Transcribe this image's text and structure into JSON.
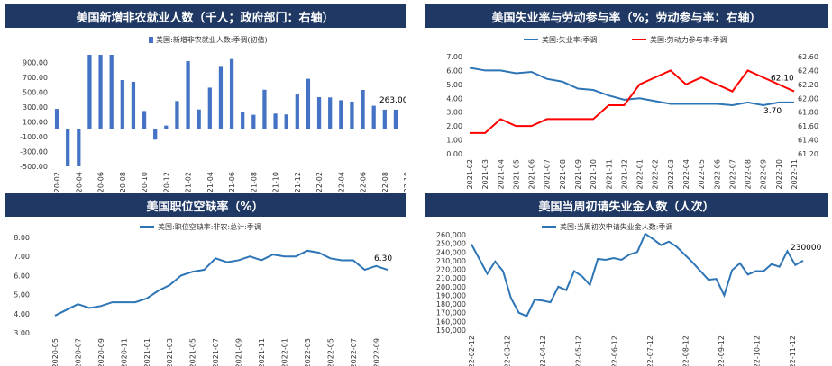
{
  "chart_data": [
    {
      "type": "bar",
      "title": "美国新增非农就业人数（千人；政府部门：右轴）",
      "legend": "美国:新增非农就业人数:季调(初值)",
      "legend_position": "top-center",
      "color": "#4472c4",
      "ylim": [
        -500,
        1000
      ],
      "yticks": [
        "900.00",
        "700.00",
        "500.00",
        "300.00",
        "100.00",
        "-100.00",
        "-300.00",
        "-500.00"
      ],
      "ytick_values": [
        900,
        700,
        500,
        300,
        100,
        -100,
        -300,
        -500
      ],
      "xtick_labels": [
        "2020-02",
        "2020-04",
        "2020-06",
        "2020-08",
        "2020-10",
        "2020-12",
        "2021-02",
        "2021-04",
        "2021-06",
        "2021-08",
        "2021-10",
        "2021-12",
        "2022-02",
        "2022-04",
        "2022-06",
        "2022-08",
        "2022-10"
      ],
      "values": [
        273,
        -500,
        -500,
        1000,
        1000,
        1000,
        661,
        638,
        245,
        -140,
        49,
        379,
        916,
        266,
        559,
        850,
        943,
        235,
        194,
        531,
        210,
        199,
        467,
        678,
        431,
        428,
        390,
        372,
        528,
        315,
        263,
        263
      ],
      "last_label": "263.00"
    },
    {
      "type": "line",
      "title": "美国失业率与劳动参与率（%；劳动参与率：右轴）",
      "series": [
        {
          "name": "美国:失业率:季调",
          "color": "#2e75b6",
          "axis": "left",
          "values": [
            6.2,
            6.0,
            6.0,
            5.8,
            5.9,
            5.4,
            5.2,
            4.7,
            4.6,
            4.2,
            3.9,
            4.0,
            3.8,
            3.6,
            3.6,
            3.6,
            3.6,
            3.5,
            3.7,
            3.5,
            3.7,
            3.7
          ]
        },
        {
          "name": "美国:劳动力参与率:季调",
          "color": "#ff0000",
          "axis": "right",
          "values": [
            61.5,
            61.5,
            61.7,
            61.6,
            61.6,
            61.7,
            61.7,
            61.7,
            61.7,
            61.9,
            61.9,
            62.2,
            62.3,
            62.4,
            62.2,
            62.3,
            62.2,
            62.1,
            62.4,
            62.3,
            62.2,
            62.1
          ]
        }
      ],
      "categories": [
        "2021-02",
        "2021-03",
        "2021-04",
        "2021-05",
        "2021-06",
        "2021-07",
        "2021-08",
        "2021-09",
        "2021-10",
        "2021-11",
        "2021-12",
        "2022-01",
        "2022-02",
        "2022-03",
        "2022-04",
        "2022-05",
        "2022-06",
        "2022-07",
        "2022-08",
        "2022-09",
        "2022-10",
        "2022-11"
      ],
      "ylim_left": [
        0,
        7
      ],
      "yticks_left": [
        "7.00",
        "6.00",
        "5.00",
        "4.00",
        "3.00",
        "2.00",
        "1.00",
        "0.00"
      ],
      "ylim_right": [
        61.2,
        62.6
      ],
      "yticks_right": [
        "62.60",
        "62.40",
        "62.20",
        "62.00",
        "61.80",
        "61.60",
        "61.40",
        "61.20"
      ],
      "label_left": "3.70",
      "label_right": "62.10"
    },
    {
      "type": "line",
      "title": "美国职位空缺率（%）",
      "legend": "美国:职位空缺率:非农:总计:季调",
      "color": "#2e75b6",
      "ylim": [
        3,
        8
      ],
      "yticks": [
        "8.00",
        "7.00",
        "6.00",
        "5.00",
        "4.00",
        "3.00"
      ],
      "xtick_labels": [
        "2020-05",
        "2020-07",
        "2020-09",
        "2020-11",
        "2021-01",
        "2021-03",
        "2021-05",
        "2021-07",
        "2021-09",
        "2021-11",
        "2022-01",
        "2022-03",
        "2022-05",
        "2022-07",
        "2022-09"
      ],
      "values": [
        3.9,
        4.2,
        4.5,
        4.3,
        4.4,
        4.6,
        4.6,
        4.6,
        4.8,
        5.2,
        5.5,
        6.0,
        6.2,
        6.3,
        6.9,
        6.7,
        6.8,
        7.0,
        6.8,
        7.1,
        7.0,
        7.0,
        7.3,
        7.2,
        6.9,
        6.8,
        6.8,
        6.3,
        6.5,
        6.3
      ],
      "last_label": "6.30"
    },
    {
      "type": "line",
      "title": "美国当周初请失业金人数（人次）",
      "legend": "美国:当周初次申请失业金人数:季调",
      "color": "#2e75b6",
      "ylim": [
        150000,
        260000
      ],
      "yticks": [
        "260,000",
        "250,000",
        "240,000",
        "230,000",
        "220,000",
        "210,000",
        "200,000",
        "190,000",
        "180,000",
        "170,000",
        "160,000",
        "150,000"
      ],
      "xtick_labels": [
        "2022-02-12",
        "2022-03-12",
        "2022-04-12",
        "2022-05-12",
        "2022-06-12",
        "2022-07-12",
        "2022-08-12",
        "2022-09-12",
        "2022-10-12",
        "2022-11-12"
      ],
      "values": [
        249000,
        232000,
        215000,
        229000,
        218000,
        187000,
        170000,
        166000,
        185000,
        184000,
        182000,
        200000,
        196000,
        218000,
        212000,
        202000,
        232000,
        231000,
        233000,
        231000,
        237000,
        240000,
        261000,
        255000,
        248000,
        252000,
        246000,
        237000,
        228000,
        218000,
        208000,
        209000,
        190000,
        219000,
        227000,
        214000,
        218000,
        218000,
        226000,
        223000,
        241000,
        225000,
        230000
      ],
      "last_label": "230000"
    }
  ]
}
